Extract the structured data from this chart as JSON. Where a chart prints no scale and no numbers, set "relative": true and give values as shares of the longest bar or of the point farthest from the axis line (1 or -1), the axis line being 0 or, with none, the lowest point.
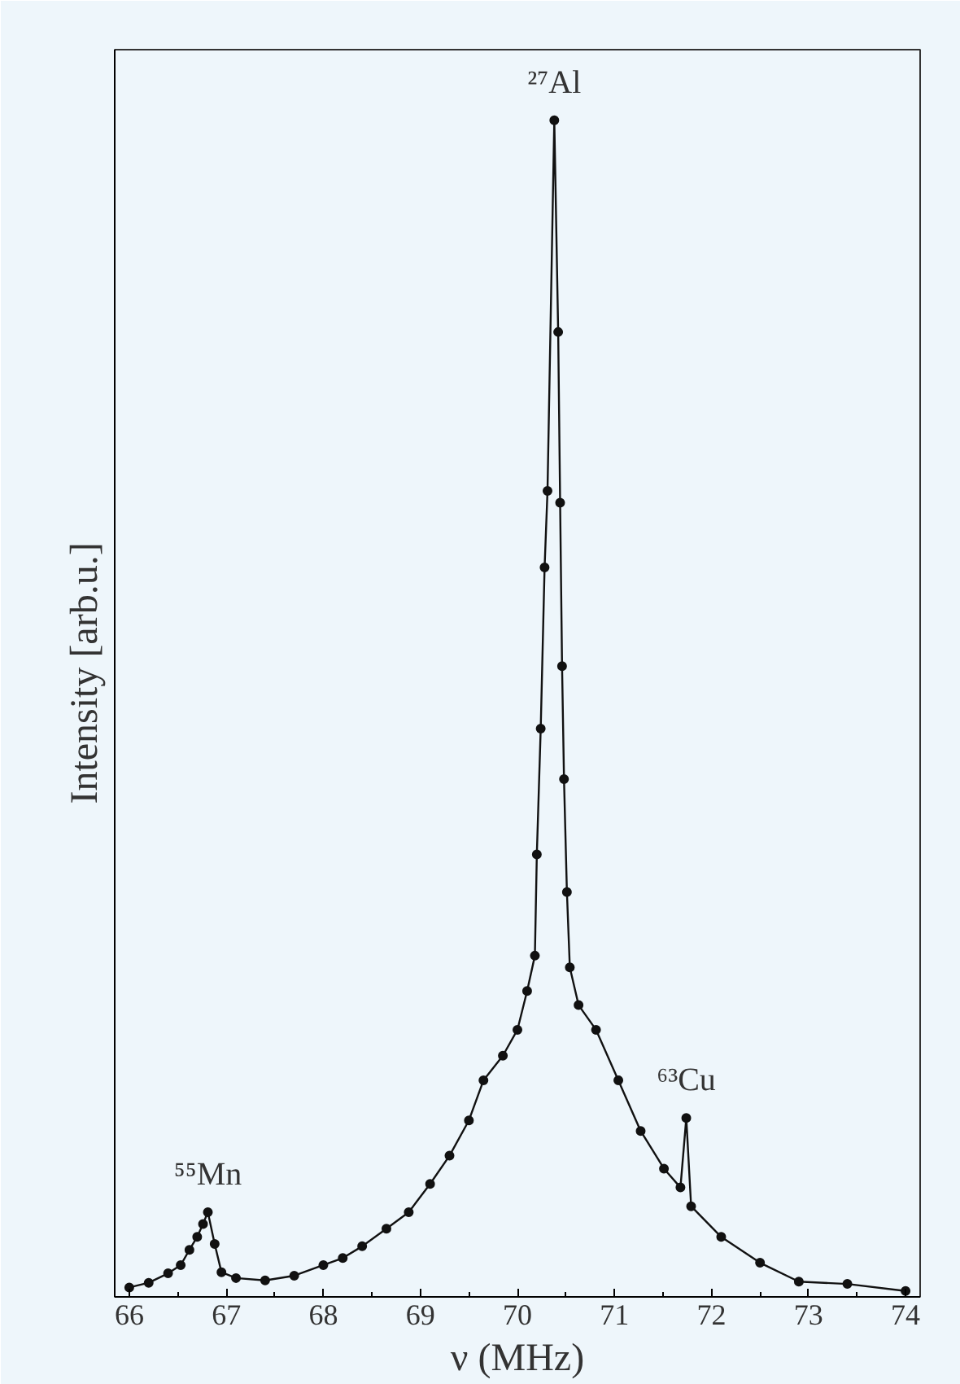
{
  "chart_data": {
    "type": "line",
    "relative": true,
    "xlabel": "ν (MHz)",
    "ylabel": "Intensity [arb.u.]",
    "xlim": [
      65.85,
      74.15
    ],
    "xticks": [
      66,
      67,
      68,
      69,
      70,
      71,
      72,
      73,
      74
    ],
    "marker": "circle",
    "grid": false,
    "x": [
      66.0,
      66.2,
      66.4,
      66.53,
      66.62,
      66.7,
      66.76,
      66.81,
      66.88,
      66.95,
      67.1,
      67.4,
      67.7,
      68.0,
      68.2,
      68.4,
      68.65,
      68.88,
      69.1,
      69.3,
      69.5,
      69.65,
      69.85,
      70.0,
      70.1,
      70.18,
      70.2,
      70.24,
      70.28,
      70.31,
      70.38,
      70.42,
      70.44,
      70.46,
      70.48,
      70.51,
      70.54,
      70.63,
      70.81,
      71.04,
      71.27,
      71.51,
      71.68,
      71.74,
      71.79,
      72.1,
      72.5,
      72.9,
      73.4,
      74.0
    ],
    "series": [
      {
        "color": "#111111",
        "values": [
          0.008,
          0.012,
          0.02,
          0.027,
          0.04,
          0.051,
          0.062,
          0.072,
          0.045,
          0.021,
          0.016,
          0.014,
          0.018,
          0.027,
          0.033,
          0.043,
          0.058,
          0.072,
          0.096,
          0.12,
          0.15,
          0.184,
          0.205,
          0.227,
          0.26,
          0.29,
          0.376,
          0.483,
          0.62,
          0.685,
          1.0,
          0.82,
          0.675,
          0.536,
          0.44,
          0.344,
          0.28,
          0.248,
          0.227,
          0.184,
          0.141,
          0.109,
          0.093,
          0.152,
          0.077,
          0.051,
          0.029,
          0.013,
          0.011,
          0.005
        ]
      }
    ],
    "annotations": [
      {
        "text": "²⁷Al",
        "x": 70.38,
        "y": 1.0
      },
      {
        "text": "⁵⁵Mn",
        "x": 66.81,
        "y": 0.072
      },
      {
        "text": "⁶³Cu",
        "x": 71.74,
        "y": 0.152
      }
    ]
  }
}
